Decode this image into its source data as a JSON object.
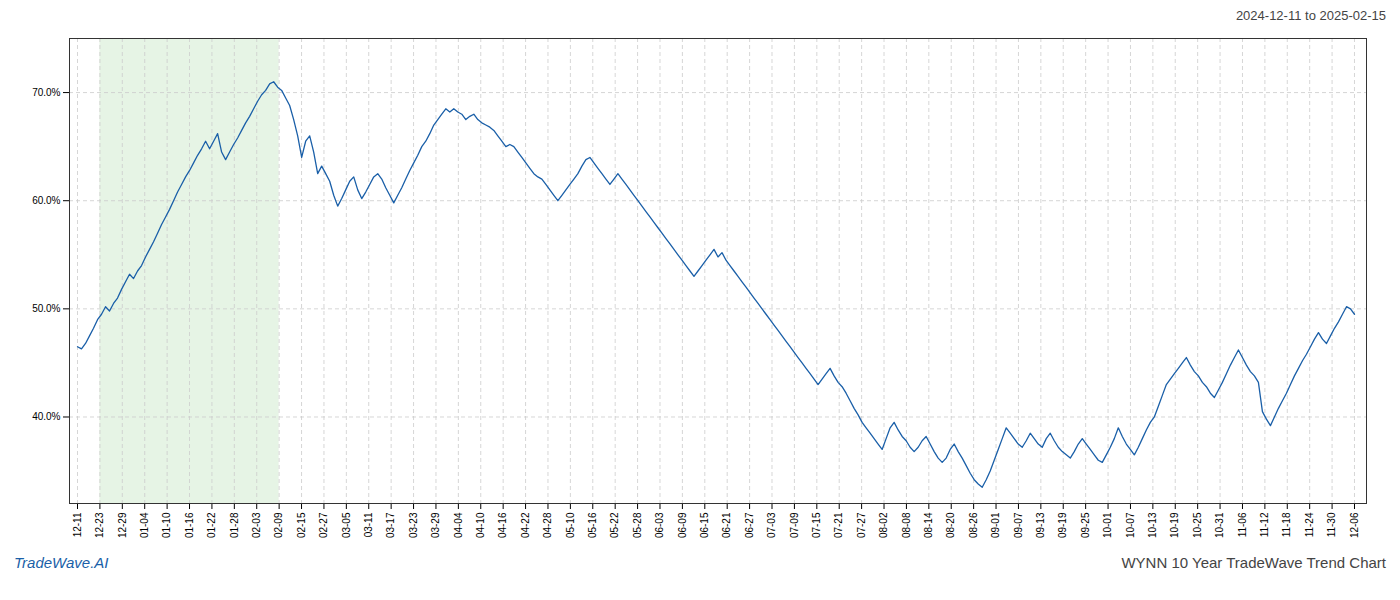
{
  "chart_data": {
    "type": "line",
    "title": "2024-12-11 to 2025-02-15",
    "annotations": [
      "TradeWave.AI",
      "WYNN 10 Year TradeWave Trend Chart"
    ],
    "color": "#1a5fa8",
    "grid": true,
    "xlim": [
      -2,
      322
    ],
    "xticks": [
      {
        "value": 0,
        "label": "12-11"
      },
      {
        "value": 5.5965,
        "label": "12-23"
      },
      {
        "value": 11.193,
        "label": "12-29"
      },
      {
        "value": 16.7895,
        "label": "01-04"
      },
      {
        "value": 22.386,
        "label": "01-10"
      },
      {
        "value": 27.9825,
        "label": "01-16"
      },
      {
        "value": 33.5789,
        "label": "01-22"
      },
      {
        "value": 39.1754,
        "label": "01-28"
      },
      {
        "value": 44.7719,
        "label": "02-03"
      },
      {
        "value": 50.3684,
        "label": "02-09"
      },
      {
        "value": 55.9649,
        "label": "02-15"
      },
      {
        "value": 61.5614,
        "label": "02-27"
      },
      {
        "value": 67.1579,
        "label": "03-05"
      },
      {
        "value": 72.7544,
        "label": "03-11"
      },
      {
        "value": 78.3509,
        "label": "03-17"
      },
      {
        "value": 83.9474,
        "label": "03-23"
      },
      {
        "value": 89.5439,
        "label": "03-29"
      },
      {
        "value": 95.1404,
        "label": "04-04"
      },
      {
        "value": 100.7368,
        "label": "04-10"
      },
      {
        "value": 106.3333,
        "label": "04-16"
      },
      {
        "value": 111.9298,
        "label": "04-22"
      },
      {
        "value": 117.5263,
        "label": "04-28"
      },
      {
        "value": 123.1228,
        "label": "05-10"
      },
      {
        "value": 128.7193,
        "label": "05-16"
      },
      {
        "value": 134.3158,
        "label": "05-22"
      },
      {
        "value": 139.9123,
        "label": "05-28"
      },
      {
        "value": 145.5088,
        "label": "06-03"
      },
      {
        "value": 151.1053,
        "label": "06-09"
      },
      {
        "value": 156.7018,
        "label": "06-15"
      },
      {
        "value": 162.2982,
        "label": "06-21"
      },
      {
        "value": 167.8947,
        "label": "06-27"
      },
      {
        "value": 173.4912,
        "label": "07-03"
      },
      {
        "value": 179.0877,
        "label": "07-09"
      },
      {
        "value": 184.6842,
        "label": "07-15"
      },
      {
        "value": 190.2807,
        "label": "07-21"
      },
      {
        "value": 195.8772,
        "label": "07-27"
      },
      {
        "value": 201.4737,
        "label": "08-02"
      },
      {
        "value": 207.0702,
        "label": "08-08"
      },
      {
        "value": 212.6667,
        "label": "08-14"
      },
      {
        "value": 218.2632,
        "label": "08-20"
      },
      {
        "value": 223.8596,
        "label": "08-26"
      },
      {
        "value": 229.4561,
        "label": "09-01"
      },
      {
        "value": 235.0526,
        "label": "09-07"
      },
      {
        "value": 240.6491,
        "label": "09-13"
      },
      {
        "value": 246.2456,
        "label": "09-19"
      },
      {
        "value": 251.8421,
        "label": "09-25"
      },
      {
        "value": 257.4386,
        "label": "10-01"
      },
      {
        "value": 263.0351,
        "label": "10-07"
      },
      {
        "value": 268.6316,
        "label": "10-13"
      },
      {
        "value": 274.2281,
        "label": "10-19"
      },
      {
        "value": 279.8246,
        "label": "10-25"
      },
      {
        "value": 285.4211,
        "label": "10-31"
      },
      {
        "value": 291.0175,
        "label": "11-06"
      },
      {
        "value": 296.614,
        "label": "11-12"
      },
      {
        "value": 302.2105,
        "label": "11-18"
      },
      {
        "value": 307.807,
        "label": "11-24"
      },
      {
        "value": 313.4035,
        "label": "11-30"
      },
      {
        "value": 319,
        "label": "12-06"
      }
    ],
    "ylim": [
      32,
      75
    ],
    "yticks": [
      {
        "value": 40.0,
        "label": "40.0%"
      },
      {
        "value": 50.0,
        "label": "50.0%"
      },
      {
        "value": 60.0,
        "label": "60.0%"
      },
      {
        "value": 70.0,
        "label": "70.0%"
      }
    ],
    "shade": {
      "start": "12-23",
      "end": "02-09",
      "color": "#d5ecd4"
    },
    "values": [
      46.5,
      46.3,
      46.8,
      47.5,
      48.2,
      49.0,
      49.5,
      50.2,
      49.8,
      50.5,
      51.0,
      51.8,
      52.5,
      53.2,
      52.8,
      53.5,
      54.0,
      54.8,
      55.5,
      56.2,
      57.0,
      57.8,
      58.5,
      59.2,
      60.0,
      60.8,
      61.5,
      62.2,
      62.8,
      63.5,
      64.2,
      64.8,
      65.5,
      64.8,
      65.5,
      66.2,
      64.5,
      63.8,
      64.5,
      65.2,
      65.8,
      66.5,
      67.2,
      67.8,
      68.5,
      69.2,
      69.8,
      70.2,
      70.8,
      71.0,
      70.5,
      70.2,
      69.5,
      68.8,
      67.5,
      66.0,
      64.0,
      65.5,
      66.0,
      64.5,
      62.5,
      63.2,
      62.5,
      61.8,
      60.5,
      59.5,
      60.2,
      61.0,
      61.8,
      62.2,
      61.0,
      60.2,
      60.8,
      61.5,
      62.2,
      62.5,
      62.0,
      61.2,
      60.5,
      59.8,
      60.5,
      61.2,
      62.0,
      62.8,
      63.5,
      64.2,
      65.0,
      65.5,
      66.2,
      67.0,
      67.5,
      68.0,
      68.5,
      68.2,
      68.5,
      68.2,
      68.0,
      67.5,
      67.8,
      68.0,
      67.5,
      67.2,
      67.0,
      66.8,
      66.5,
      66.0,
      65.5,
      65.0,
      65.2,
      65.0,
      64.5,
      64.0,
      63.5,
      63.0,
      62.5,
      62.2,
      62.0,
      61.5,
      61.0,
      60.5,
      60.0,
      60.5,
      61.0,
      61.5,
      62.0,
      62.5,
      63.2,
      63.8,
      64.0,
      63.5,
      63.0,
      62.5,
      62.0,
      61.5,
      62.0,
      62.5,
      62.0,
      61.5,
      61.0,
      60.5,
      60.0,
      59.5,
      59.0,
      58.5,
      58.0,
      57.5,
      57.0,
      56.5,
      56.0,
      55.5,
      55.0,
      54.5,
      54.0,
      53.5,
      53.0,
      53.5,
      54.0,
      54.5,
      55.0,
      55.5,
      54.8,
      55.2,
      54.5,
      54.0,
      53.5,
      53.0,
      52.5,
      52.0,
      51.5,
      51.0,
      50.5,
      50.0,
      49.5,
      49.0,
      48.5,
      48.0,
      47.5,
      47.0,
      46.5,
      46.0,
      45.5,
      45.0,
      44.5,
      44.0,
      43.5,
      43.0,
      43.5,
      44.0,
      44.5,
      43.8,
      43.2,
      42.8,
      42.2,
      41.5,
      40.8,
      40.2,
      39.5,
      39.0,
      38.5,
      38.0,
      37.5,
      37.0,
      38.0,
      39.0,
      39.5,
      38.8,
      38.2,
      37.8,
      37.2,
      36.8,
      37.2,
      37.8,
      38.2,
      37.5,
      36.8,
      36.2,
      35.8,
      36.2,
      37.0,
      37.5,
      36.8,
      36.2,
      35.5,
      34.8,
      34.2,
      33.8,
      33.5,
      34.2,
      35.0,
      36.0,
      37.0,
      38.0,
      39.0,
      38.5,
      38.0,
      37.5,
      37.2,
      37.8,
      38.5,
      38.0,
      37.5,
      37.2,
      38.0,
      38.5,
      37.8,
      37.2,
      36.8,
      36.5,
      36.2,
      36.8,
      37.5,
      38.0,
      37.5,
      37.0,
      36.5,
      36.0,
      35.8,
      36.5,
      37.2,
      38.0,
      39.0,
      38.2,
      37.5,
      37.0,
      36.5,
      37.2,
      38.0,
      38.8,
      39.5,
      40.0,
      41.0,
      42.0,
      43.0,
      43.5,
      44.0,
      44.5,
      45.0,
      45.5,
      44.8,
      44.2,
      43.8,
      43.2,
      42.8,
      42.2,
      41.8,
      42.5,
      43.2,
      44.0,
      44.8,
      45.5,
      46.2,
      45.5,
      44.8,
      44.2,
      43.8,
      43.2,
      40.5,
      39.8,
      39.2,
      40.0,
      40.8,
      41.5,
      42.2,
      43.0,
      43.8,
      44.5,
      45.2,
      45.8,
      46.5,
      47.2,
      47.8,
      47.2,
      46.8,
      47.5,
      48.2,
      48.8,
      49.5,
      50.2,
      50.0,
      49.5
    ]
  }
}
